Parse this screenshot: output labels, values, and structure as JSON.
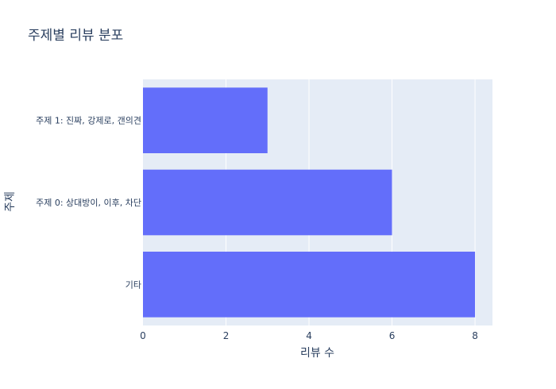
{
  "chart_data": {
    "type": "bar",
    "orientation": "horizontal",
    "title": "주제별 리뷰 분포",
    "xlabel": "리뷰 수",
    "ylabel": "주제",
    "categories": [
      "기타",
      "주제 0: 상대방이, 이후, 차단",
      "주제 1: 진짜, 강제로, 갠의견"
    ],
    "values": [
      8,
      6,
      3
    ],
    "xlim": [
      0,
      8.42
    ],
    "xticks": [
      0,
      2,
      4,
      6,
      8
    ],
    "grid": true,
    "legend": "none"
  },
  "colors": {
    "bar": "#636efa",
    "plot_background": "#e5ecf6",
    "gridline": "#ffffff",
    "text": "#2a3f5f"
  }
}
